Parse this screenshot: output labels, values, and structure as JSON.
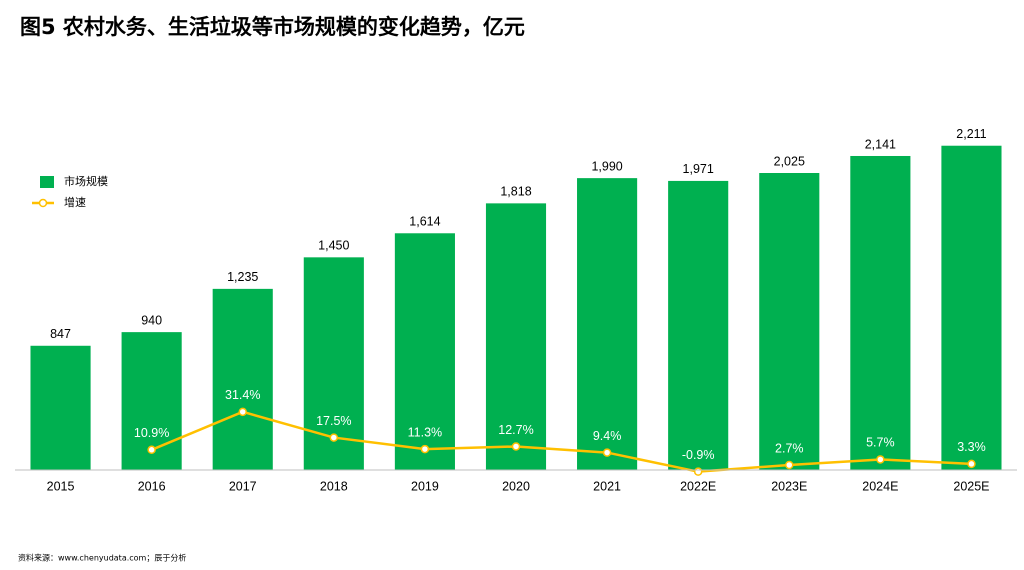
{
  "chart_data": {
    "type": "bar",
    "title": "图5 农村水务、生活垃圾等市场规模的变化趋势，亿元",
    "source": "资料来源：www.chenyudata.com；辰于分析",
    "categories": [
      "2015",
      "2016",
      "2017",
      "2018",
      "2019",
      "2020",
      "2021",
      "2022E",
      "2023E",
      "2024E",
      "2025E"
    ],
    "series": [
      {
        "name": "市场规模",
        "type": "bar",
        "color": "#00b050",
        "values": [
          847,
          940,
          1235,
          1450,
          1614,
          1818,
          1990,
          1971,
          2025,
          2141,
          2211
        ],
        "value_labels": [
          "847",
          "940",
          "1,235",
          "1,450",
          "1,614",
          "1,818",
          "1,990",
          "1,971",
          "2,025",
          "2,141",
          "2,211"
        ]
      },
      {
        "name": "增速",
        "type": "line",
        "axis": "y2",
        "color": "#ffc000",
        "values": [
          null,
          10.9,
          31.4,
          17.5,
          11.3,
          12.7,
          9.4,
          -0.9,
          2.7,
          5.7,
          3.3
        ],
        "value_labels": [
          null,
          "10.9%",
          "31.4%",
          "17.5%",
          "11.3%",
          "12.7%",
          "9.4%",
          "-0.9%",
          "2.7%",
          "5.7%",
          "3.3%"
        ]
      }
    ],
    "ylim": [
      0,
      2400
    ],
    "y2lim": [
      0,
      190
    ],
    "legend": "upper-left"
  }
}
